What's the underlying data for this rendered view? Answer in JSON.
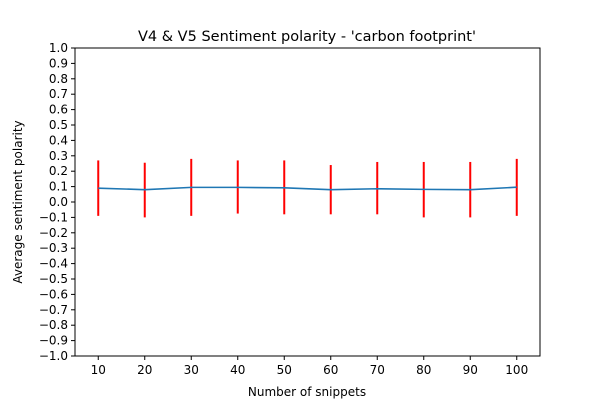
{
  "chart_data": {
    "type": "line",
    "title": "V4 & V5 Sentiment polarity - 'carbon footprint'",
    "xlabel": "Number of snippets",
    "ylabel": "Average sentiment polarity",
    "xlim": [
      5,
      105
    ],
    "ylim": [
      -1.0,
      1.0
    ],
    "x": [
      10,
      20,
      30,
      40,
      50,
      60,
      70,
      80,
      90,
      100
    ],
    "x_ticks": [
      "10",
      "20",
      "30",
      "40",
      "50",
      "60",
      "70",
      "80",
      "90",
      "100"
    ],
    "y_ticks": [
      "−1.0",
      "−0.9",
      "−0.8",
      "−0.7",
      "−0.6",
      "−0.5",
      "−0.4",
      "−0.3",
      "−0.2",
      "−0.1",
      "0.0",
      "0.1",
      "0.2",
      "0.3",
      "0.4",
      "0.5",
      "0.6",
      "0.7",
      "0.8",
      "0.9",
      "1.0"
    ],
    "series": [
      {
        "values": [
          0.09,
          0.08,
          0.095,
          0.095,
          0.092,
          0.08,
          0.086,
          0.082,
          0.08,
          0.096
        ],
        "error_low": [
          -0.09,
          -0.1,
          -0.09,
          -0.075,
          -0.08,
          -0.08,
          -0.08,
          -0.1,
          -0.1,
          -0.09
        ],
        "error_high": [
          0.27,
          0.255,
          0.28,
          0.27,
          0.27,
          0.24,
          0.26,
          0.26,
          0.26,
          0.28
        ]
      }
    ],
    "grid": false,
    "colors": {
      "line": "#1f77b4",
      "error": "#ff0000"
    }
  }
}
